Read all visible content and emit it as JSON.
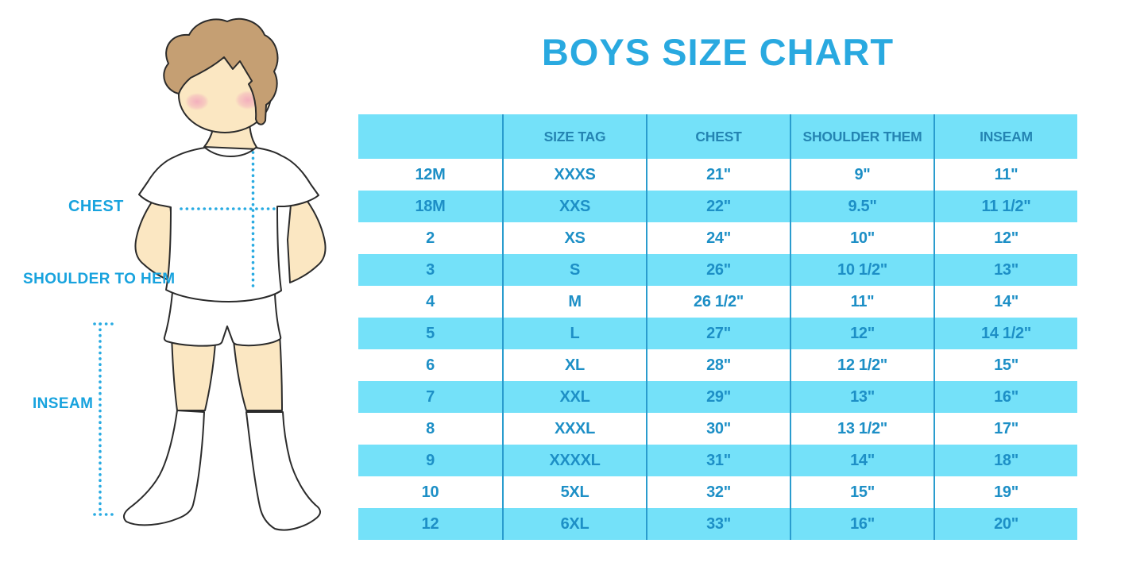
{
  "title": "BOYS SIZE CHART",
  "figure_labels": {
    "chest": "CHEST",
    "shoulder_to_hem": "SHOULDER TO HEM",
    "inseam": "INSEAM"
  },
  "colors": {
    "accent": "#29A9E0",
    "row_cyan": "#74E1F9",
    "table_text": "#1D8FC6",
    "header_text": "#2484B2",
    "divider": "#2A9CCE",
    "label_text": "#18A3DE",
    "dotted_line": "#29ABE2",
    "skin": "#FBE7C2",
    "hair": "#C59F73",
    "outline": "#2B2B2B"
  },
  "chart_data": {
    "type": "table",
    "title": "BOYS SIZE CHART",
    "columns": [
      "",
      "SIZE TAG",
      "CHEST",
      "SHOULDER THEM",
      "INSEAM"
    ],
    "rows": [
      [
        "12M",
        "XXXS",
        "21\"",
        "9\"",
        "11\""
      ],
      [
        "18M",
        "XXS",
        "22\"",
        "9.5\"",
        "11 1/2\""
      ],
      [
        "2",
        "XS",
        "24\"",
        "10\"",
        "12\""
      ],
      [
        "3",
        "S",
        "26\"",
        "10 1/2\"",
        "13\""
      ],
      [
        "4",
        "M",
        "26 1/2\"",
        "11\"",
        "14\""
      ],
      [
        "5",
        "L",
        "27\"",
        "12\"",
        "14 1/2\""
      ],
      [
        "6",
        "XL",
        "28\"",
        "12 1/2\"",
        "15\""
      ],
      [
        "7",
        "XXL",
        "29\"",
        "13\"",
        "16\""
      ],
      [
        "8",
        "XXXL",
        "30\"",
        "13 1/2\"",
        "17\""
      ],
      [
        "9",
        "XXXXL",
        "31\"",
        "14\"",
        "18\""
      ],
      [
        "10",
        "5XL",
        "32\"",
        "15\"",
        "19\""
      ],
      [
        "12",
        "6XL",
        "33\"",
        "16\"",
        "20\""
      ]
    ],
    "row_striping": "white/cyan alternating, header cyan",
    "legend_position": "none",
    "grid": "vertical column dividers only"
  }
}
